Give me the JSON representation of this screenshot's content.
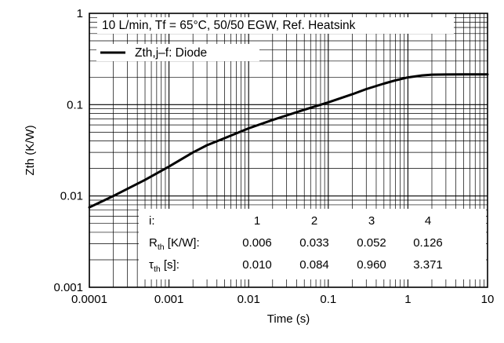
{
  "chart_data": {
    "type": "line",
    "title": "10 L/min, Tf = 65°C, 50/50 EGW, Ref. Heatsink",
    "xlabel": "Time (s)",
    "ylabel": "Zth (K/W)",
    "xscale": "log",
    "yscale": "log",
    "xlim": [
      0.0001,
      10
    ],
    "ylim": [
      0.001,
      1
    ],
    "grid": true,
    "legend": {
      "placement": "top-left",
      "entries": [
        "Zth,j–f: Diode"
      ]
    },
    "xticks": [
      "0.0001",
      "0.001",
      "0.01",
      "0.1",
      "1",
      "10"
    ],
    "yticks": [
      "0.001",
      "0.01",
      "0.1",
      "1"
    ],
    "series": [
      {
        "name": "Zth,j–f: Diode",
        "x": [
          0.0001,
          0.0002,
          0.0005,
          0.001,
          0.002,
          0.003,
          0.005,
          0.01,
          0.02,
          0.05,
          0.1,
          0.2,
          0.3,
          0.5,
          0.7,
          1,
          1.5,
          2,
          3,
          5,
          10
        ],
        "y": [
          0.0075,
          0.01,
          0.015,
          0.021,
          0.03,
          0.036,
          0.043,
          0.055,
          0.068,
          0.088,
          0.106,
          0.13,
          0.148,
          0.17,
          0.185,
          0.199,
          0.209,
          0.213,
          0.214,
          0.215,
          0.215
        ]
      }
    ],
    "table": {
      "header_label": "i:",
      "columns": [
        "1",
        "2",
        "3",
        "4"
      ],
      "rows": [
        {
          "symbol": "R",
          "subscript": "th",
          "unit": " [K/W]:",
          "values": [
            "0.006",
            "0.033",
            "0.052",
            "0.126"
          ]
        },
        {
          "symbol": "τ",
          "subscript": "th",
          "unit": " [s]:",
          "values": [
            "0.010",
            "0.084",
            "0.960",
            "3.371"
          ]
        }
      ]
    }
  }
}
